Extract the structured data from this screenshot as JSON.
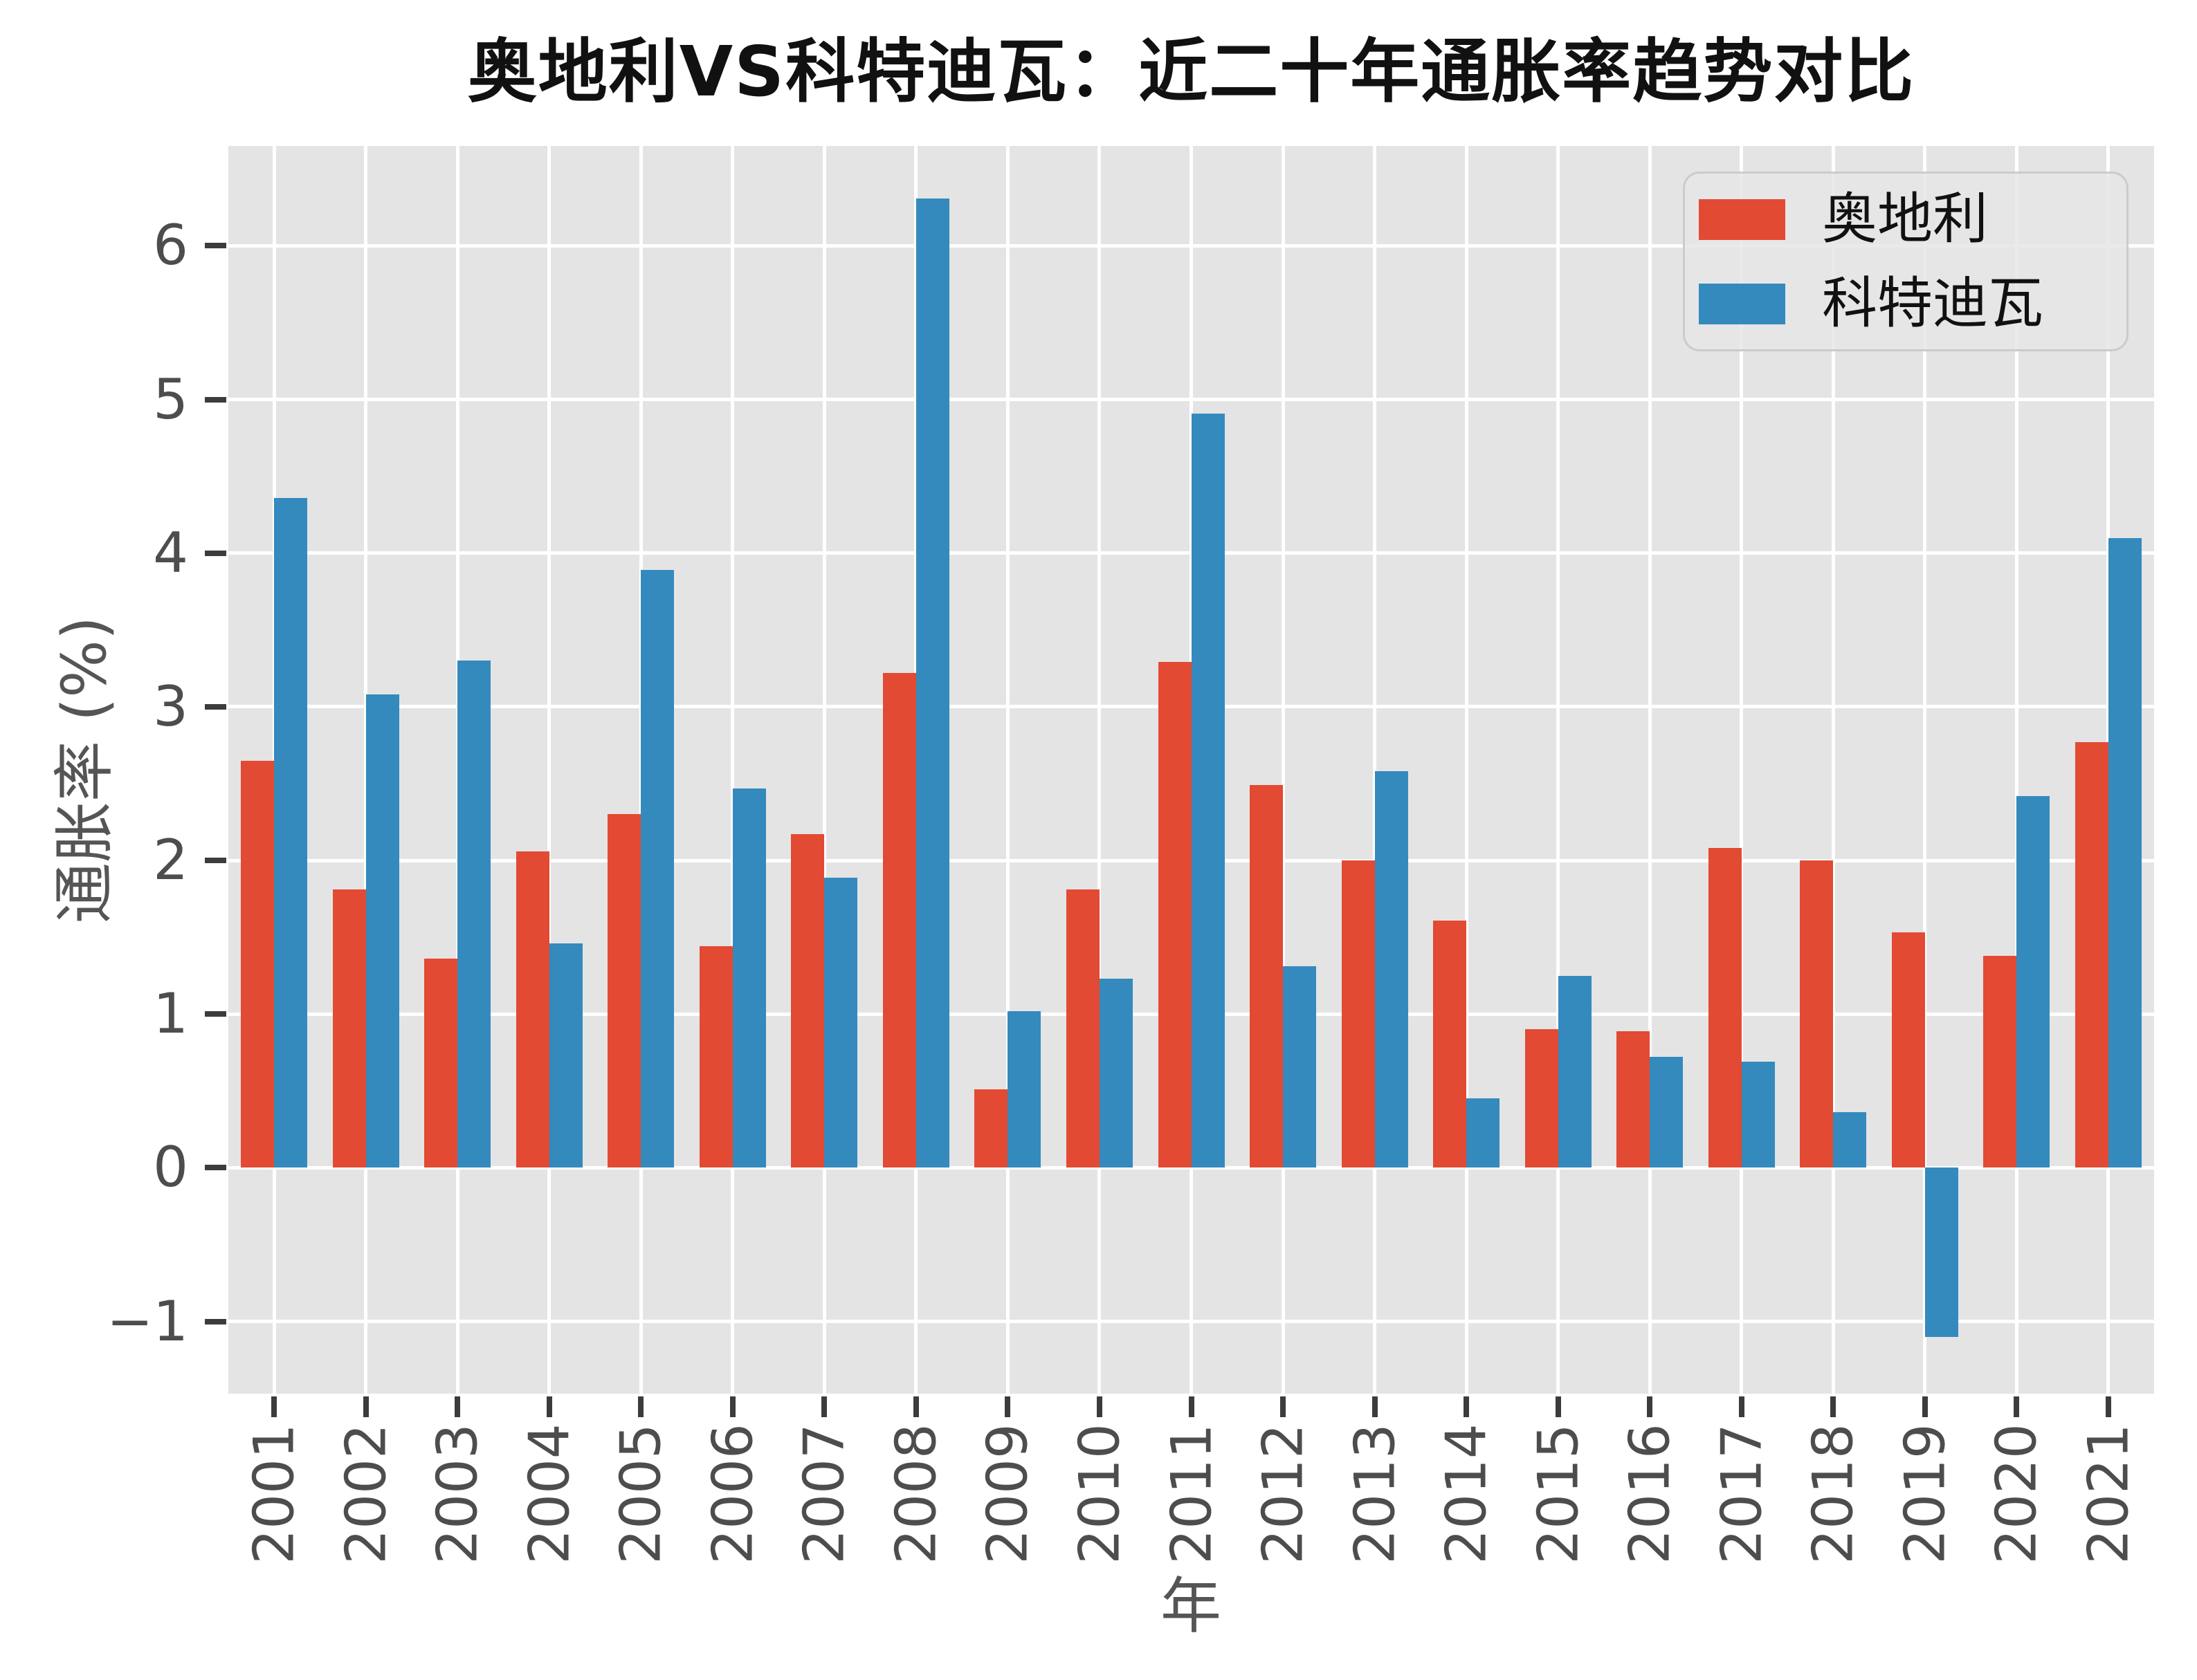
{
  "chart_data": {
    "type": "bar",
    "title": "奥地利VS科特迪瓦：近二十年通胀率趋势对比",
    "xlabel": "年",
    "ylabel": "通胀率 (%)",
    "categories": [
      "2001",
      "2002",
      "2003",
      "2004",
      "2005",
      "2006",
      "2007",
      "2008",
      "2009",
      "2010",
      "2011",
      "2012",
      "2013",
      "2014",
      "2015",
      "2016",
      "2017",
      "2018",
      "2019",
      "2020",
      "2021"
    ],
    "series": [
      {
        "name": "奥地利",
        "color": "#E24A33",
        "values": [
          2.65,
          1.81,
          1.36,
          2.06,
          2.3,
          1.44,
          2.17,
          3.22,
          0.51,
          1.81,
          3.29,
          2.49,
          2.0,
          1.61,
          0.9,
          0.89,
          2.08,
          2.0,
          1.53,
          1.38,
          2.77
        ]
      },
      {
        "name": "科特迪瓦",
        "color": "#348ABD",
        "values": [
          4.36,
          3.08,
          3.3,
          1.46,
          3.89,
          2.47,
          1.89,
          6.31,
          1.02,
          1.23,
          4.91,
          1.31,
          2.58,
          0.45,
          1.25,
          0.72,
          0.69,
          0.36,
          -1.1,
          2.42,
          4.1
        ]
      }
    ],
    "ylim": [
      -1.47,
      6.65
    ],
    "yticks": [
      -1,
      0,
      1,
      2,
      3,
      4,
      5,
      6
    ],
    "grid": true,
    "legend_position": "upper right",
    "plot_background": "#E5E4E5",
    "gridline_color": "#FFFFFF",
    "tick_label_color": "#4D4D4D",
    "axis_label_color": "#555555"
  }
}
